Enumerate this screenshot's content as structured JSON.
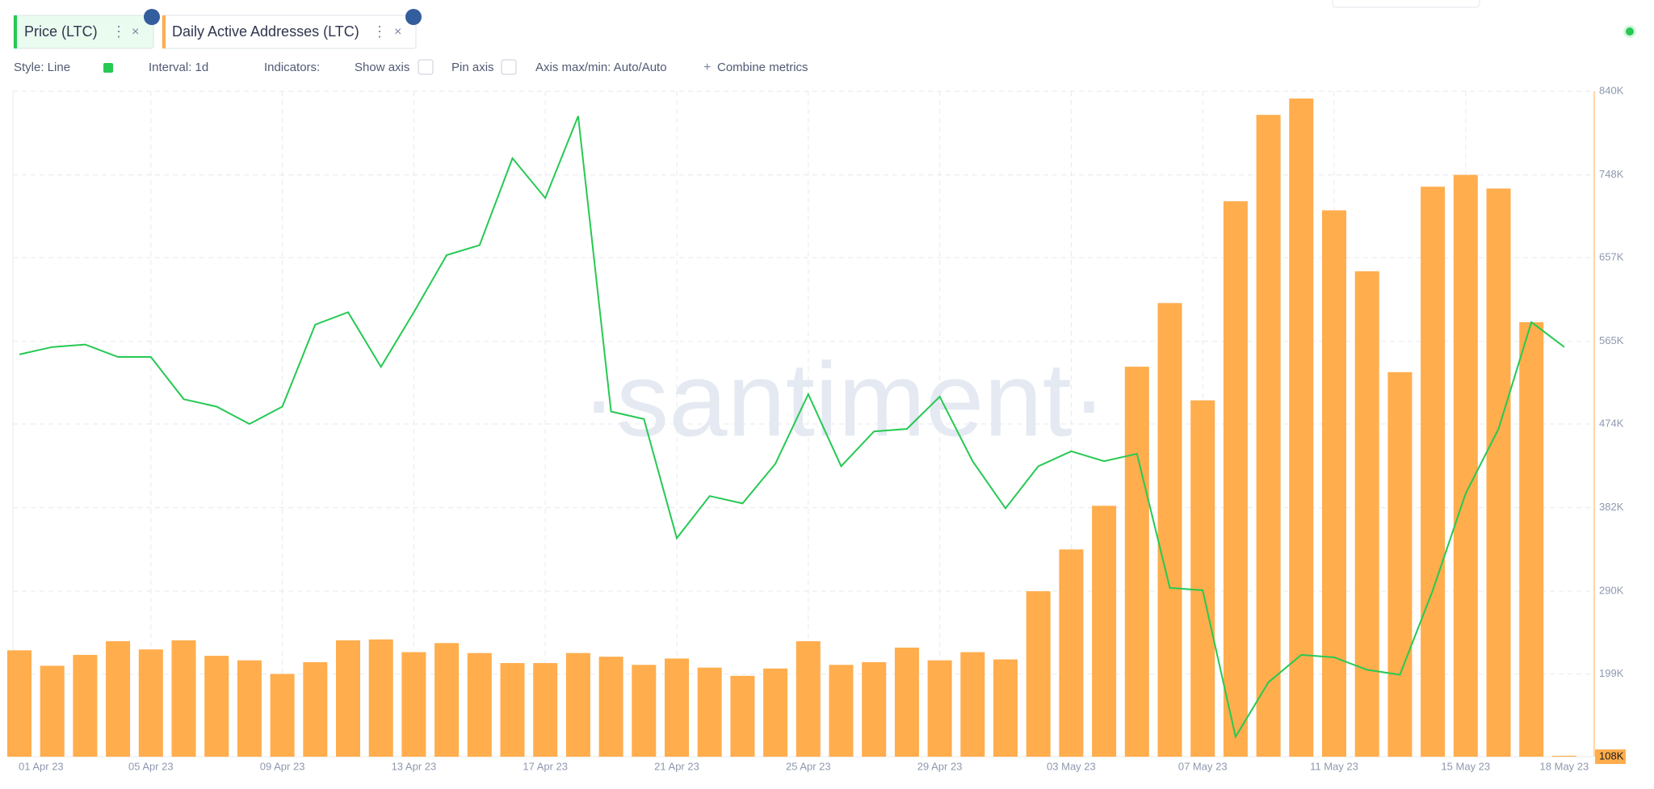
{
  "chart_data": {
    "type": "combo",
    "x": [
      "01 Apr 23",
      null,
      null,
      null,
      "05 Apr 23",
      null,
      null,
      null,
      "09 Apr 23",
      null,
      null,
      null,
      "13 Apr 23",
      null,
      null,
      null,
      "17 Apr 23",
      null,
      null,
      null,
      "21 Apr 23",
      null,
      null,
      null,
      "25 Apr 23",
      null,
      null,
      null,
      "29 Apr 23",
      null,
      null,
      null,
      "03 May 23",
      null,
      null,
      null,
      "07 May 23",
      null,
      null,
      null,
      "11 May 23",
      null,
      null,
      null,
      "15 May 23",
      null,
      null,
      "18 May 23"
    ],
    "series": [
      {
        "name": "Price (LTC)",
        "type": "line",
        "axis": "y",
        "color": "#26c953",
        "values": [
          91.4,
          91.7,
          91.8,
          91.3,
          91.3,
          89.6,
          89.3,
          88.6,
          89.3,
          92.6,
          93.1,
          90.9,
          93.1,
          95.4,
          95.8,
          99.3,
          97.7,
          101.0,
          89.1,
          88.8,
          84.0,
          85.7,
          85.4,
          87.0,
          89.8,
          86.9,
          88.3,
          88.4,
          89.7,
          87.1,
          85.2,
          86.9,
          87.5,
          87.1,
          87.4,
          82.0,
          81.9,
          76.0,
          78.2,
          79.3,
          79.2,
          78.7,
          78.5,
          81.9,
          85.8,
          88.4,
          92.7,
          91.7
        ]
      },
      {
        "name": "Daily Active Addresses (LTC)",
        "type": "bar",
        "axis": "y2",
        "color": "#ffad4d",
        "values": [
          225000,
          208000,
          220000,
          235000,
          226000,
          236000,
          219000,
          214000,
          199000,
          212000,
          236000,
          237000,
          223000,
          233000,
          222000,
          211000,
          211000,
          222000,
          218000,
          209000,
          216000,
          206000,
          197000,
          205000,
          235000,
          209000,
          212000,
          228000,
          214000,
          223000,
          215000,
          290000,
          336000,
          384000,
          537000,
          607000,
          500000,
          719000,
          814000,
          832000,
          709000,
          642000,
          531000,
          735000,
          748000,
          733000,
          586000,
          109000
        ]
      }
    ],
    "ylim": [
      75.2,
      102.0
    ],
    "y2lim": [
      108000,
      840000
    ],
    "y2ticks": [
      {
        "value": 108000,
        "label": "108K"
      },
      {
        "value": 199000,
        "label": "199K"
      },
      {
        "value": 290000,
        "label": "290K"
      },
      {
        "value": 382000,
        "label": "382K"
      },
      {
        "value": 474000,
        "label": "474K"
      },
      {
        "value": 565000,
        "label": "565K"
      },
      {
        "value": 657000,
        "label": "657K"
      },
      {
        "value": 748000,
        "label": "748K"
      },
      {
        "value": 840000,
        "label": "840K"
      }
    ],
    "grid": true
  },
  "toolbar": [
    "Style: Line",
    "Interval: 1d",
    "Indicators:",
    "Show axis",
    "Pin axis",
    "Axis max/min: Auto/Auto",
    "Combine metrics"
  ],
  "watermark": "·santiment·"
}
